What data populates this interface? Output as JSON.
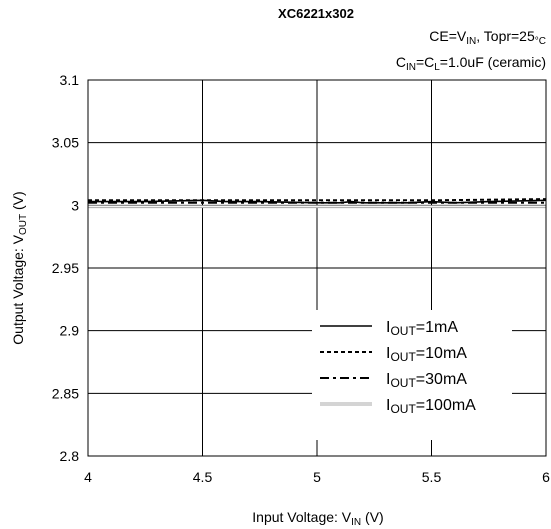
{
  "chart_data": {
    "type": "line",
    "title": "XC6221x302",
    "conditions": [
      {
        "parts": [
          {
            "t": "CE=V"
          },
          {
            "t": "IN",
            "sub": true
          },
          {
            "t": ", Topr=25"
          },
          {
            "t": "°C",
            "sub": true
          }
        ]
      },
      {
        "parts": [
          {
            "t": "C"
          },
          {
            "t": "IN",
            "sub": true
          },
          {
            "t": "=C"
          },
          {
            "t": "L",
            "sub": true
          },
          {
            "t": "=1.0uF (ceramic)"
          }
        ]
      }
    ],
    "xlabel": {
      "parts": [
        {
          "t": "Input Voltage: V"
        },
        {
          "t": "IN",
          "sub": true
        },
        {
          "t": " (V)"
        }
      ]
    },
    "ylabel": {
      "parts": [
        {
          "t": "Output Voltage: V"
        },
        {
          "t": "OUT",
          "sub": true
        },
        {
          "t": " (V)"
        }
      ]
    },
    "xlim": [
      4,
      6
    ],
    "ylim": [
      2.8,
      3.1
    ],
    "xticks": [
      4,
      4.5,
      5,
      5.5,
      6
    ],
    "xtick_labels": [
      "4",
      "4.5",
      "5",
      "5.5",
      "6"
    ],
    "yticks": [
      2.8,
      2.85,
      2.9,
      2.95,
      3.0,
      3.05,
      3.1
    ],
    "ytick_labels": [
      "2.8",
      "2.85",
      "2.9",
      "2.95",
      "3",
      "3.05",
      "3.1"
    ],
    "grid": true,
    "legend_position": "bottom-right",
    "series": [
      {
        "name": "1mA",
        "label": {
          "parts": [
            {
              "t": "I"
            },
            {
              "t": "OUT",
              "sub": true
            },
            {
              "t": "=1mA"
            }
          ]
        },
        "style": "solid",
        "color": "#000000",
        "x": [
          4,
          4.25,
          4.5,
          4.6,
          4.75,
          5,
          5.1,
          5.15,
          5.2,
          5.4,
          5.5,
          5.6,
          5.75,
          6
        ],
        "y": [
          3.003,
          3.003,
          3.004,
          3.003,
          3.003,
          3.002,
          3.002,
          3.003,
          3.002,
          3.002,
          3.003,
          3.002,
          3.003,
          3.004
        ]
      },
      {
        "name": "10mA",
        "label": {
          "parts": [
            {
              "t": "I"
            },
            {
              "t": "OUT",
              "sub": true
            },
            {
              "t": "=10mA"
            }
          ]
        },
        "style": "dotted",
        "color": "#000000",
        "x": [
          4,
          4.5,
          5,
          5.5,
          6
        ],
        "y": [
          3.004,
          3.004,
          3.004,
          3.004,
          3.005
        ]
      },
      {
        "name": "30mA",
        "label": {
          "parts": [
            {
              "t": "I"
            },
            {
              "t": "OUT",
              "sub": true
            },
            {
              "t": "=30mA"
            }
          ]
        },
        "style": "dashdot",
        "color": "#000000",
        "x": [
          4,
          4.5,
          5,
          5.5,
          6
        ],
        "y": [
          3.002,
          3.002,
          3.002,
          3.002,
          3.002
        ]
      },
      {
        "name": "100mA",
        "label": {
          "parts": [
            {
              "t": "I"
            },
            {
              "t": "OUT",
              "sub": true
            },
            {
              "t": "=100mA"
            }
          ]
        },
        "style": "double",
        "color": "#a8a8a8",
        "x": [
          4,
          4.5,
          5,
          5.5,
          6
        ],
        "y": [
          2.999,
          2.999,
          2.999,
          2.999,
          2.999
        ]
      }
    ]
  }
}
